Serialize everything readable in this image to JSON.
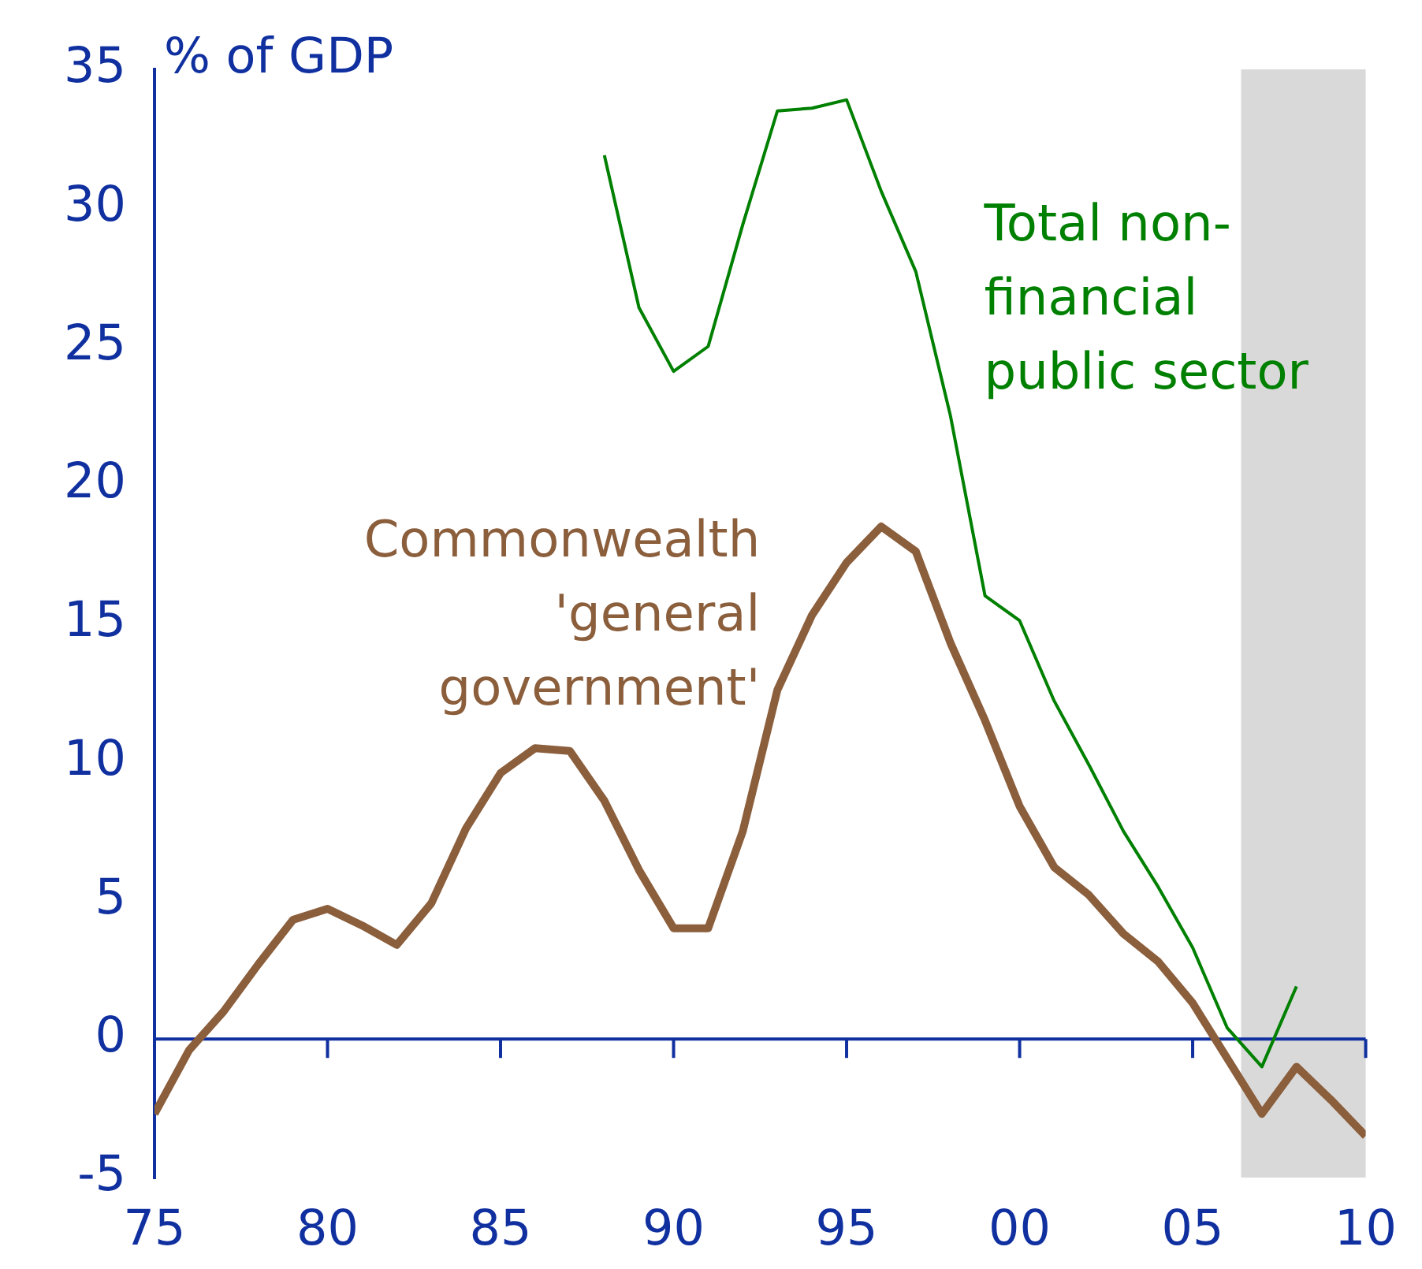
{
  "chart_data": {
    "type": "line",
    "ylabel": "% of GDP",
    "x": [
      1975,
      1976,
      1977,
      1978,
      1979,
      1980,
      1981,
      1982,
      1983,
      1984,
      1985,
      1986,
      1987,
      1988,
      1989,
      1990,
      1991,
      1992,
      1993,
      1994,
      1995,
      1996,
      1997,
      1998,
      1999,
      2000,
      2001,
      2002,
      2003,
      2004,
      2005,
      2006,
      2007,
      2008,
      2009,
      2010
    ],
    "series": [
      {
        "name": "Commonwealth 'general government'",
        "color": "#8b5e3c",
        "values": [
          -2.7,
          -0.4,
          1.0,
          2.7,
          4.3,
          4.7,
          4.1,
          3.4,
          4.9,
          7.6,
          9.6,
          10.5,
          10.4,
          8.6,
          6.1,
          4.0,
          4.0,
          7.5,
          12.6,
          15.3,
          17.2,
          18.5,
          17.6,
          14.3,
          11.5,
          8.4,
          6.2,
          5.2,
          3.8,
          2.8,
          1.3,
          -0.7,
          -2.7,
          -1.0,
          -2.2,
          -3.5
        ]
      },
      {
        "name": "Total non-financial public sector",
        "color": "#008000",
        "x": [
          1988,
          1989,
          1990,
          1991,
          1992,
          1993,
          1994,
          1995,
          1996,
          1997,
          1998,
          1999,
          2000,
          2001,
          2002,
          2003,
          2004,
          2005,
          2006,
          2007,
          2008
        ],
        "values": [
          31.9,
          26.4,
          24.1,
          25.0,
          29.4,
          33.5,
          33.6,
          33.9,
          30.6,
          27.7,
          22.5,
          16.0,
          15.1,
          12.2,
          9.9,
          7.5,
          5.5,
          3.3,
          0.4,
          -1.0,
          1.9
        ]
      }
    ],
    "xlim": [
      1975,
      2010
    ],
    "xticks": [
      {
        "value": 1975,
        "label": "75"
      },
      {
        "value": 1980,
        "label": "80"
      },
      {
        "value": 1985,
        "label": "85"
      },
      {
        "value": 1990,
        "label": "90"
      },
      {
        "value": 1995,
        "label": "95"
      },
      {
        "value": 2000,
        "label": "00"
      },
      {
        "value": 2005,
        "label": "05"
      },
      {
        "value": 2010,
        "label": "10"
      }
    ],
    "ylim": [
      -5,
      35
    ],
    "yticks": [
      -5,
      0,
      5,
      10,
      15,
      20,
      25,
      30,
      35
    ],
    "ref_lines": [
      {
        "axis": "y",
        "value": 0,
        "color": "#1030a0"
      }
    ],
    "bands": [
      {
        "axis": "x",
        "from": 2006.4,
        "to": 2010,
        "color": "#d9d9d9"
      }
    ],
    "legend": false,
    "grid": false
  }
}
